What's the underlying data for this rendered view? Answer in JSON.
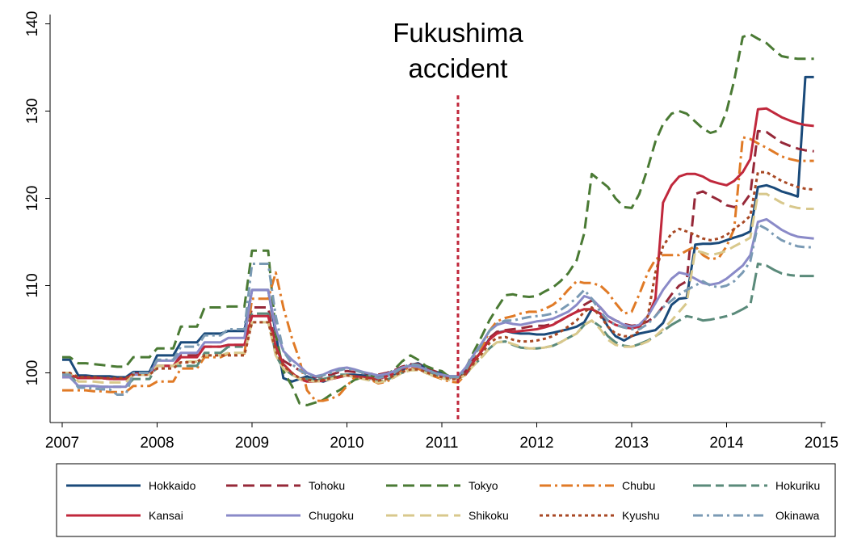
{
  "chart_data": {
    "type": "line",
    "title": "",
    "xlabel": "",
    "ylabel": "",
    "xlim": [
      2007,
      2015
    ],
    "ylim": [
      95,
      140
    ],
    "x_ticks": [
      2007,
      2008,
      2009,
      2010,
      2011,
      2012,
      2013,
      2014,
      2015
    ],
    "y_ticks": [
      100,
      110,
      120,
      130,
      140
    ],
    "x_tick_labels": [
      "2007",
      "2008",
      "2009",
      "2010",
      "2011",
      "2012",
      "2013",
      "2014",
      "2015"
    ],
    "y_tick_labels": [
      "100",
      "110",
      "120",
      "130",
      "140"
    ],
    "grid": false,
    "legend_position": "bottom",
    "annotation": {
      "line1": "Fukushima",
      "line2": "accident",
      "x": 2011.17,
      "color": "#c0283c"
    },
    "x": [
      2007.0,
      2007.08,
      2007.17,
      2007.25,
      2007.33,
      2007.42,
      2007.5,
      2007.58,
      2007.67,
      2007.75,
      2007.83,
      2007.92,
      2008.0,
      2008.08,
      2008.17,
      2008.25,
      2008.33,
      2008.42,
      2008.5,
      2008.58,
      2008.67,
      2008.75,
      2008.83,
      2008.92,
      2009.0,
      2009.08,
      2009.17,
      2009.25,
      2009.33,
      2009.42,
      2009.5,
      2009.58,
      2009.67,
      2009.75,
      2009.83,
      2009.92,
      2010.0,
      2010.08,
      2010.17,
      2010.25,
      2010.33,
      2010.42,
      2010.5,
      2010.58,
      2010.67,
      2010.75,
      2010.83,
      2010.92,
      2011.0,
      2011.08,
      2011.17,
      2011.25,
      2011.33,
      2011.42,
      2011.5,
      2011.58,
      2011.67,
      2011.75,
      2011.83,
      2011.92,
      2012.0,
      2012.08,
      2012.17,
      2012.25,
      2012.33,
      2012.42,
      2012.5,
      2012.58,
      2012.67,
      2012.75,
      2012.83,
      2012.92,
      2013.0,
      2013.08,
      2013.17,
      2013.25,
      2013.33,
      2013.42,
      2013.5,
      2013.58,
      2013.67,
      2013.75,
      2013.83,
      2013.92,
      2014.0,
      2014.08,
      2014.17,
      2014.25,
      2014.33,
      2014.42,
      2014.5,
      2014.58,
      2014.67,
      2014.75,
      2014.83,
      2014.92
    ],
    "series": [
      {
        "name": "Hokkaido",
        "color": "#1a4a7a",
        "dash": "",
        "values": [
          101.5,
          101.5,
          99.7,
          99.7,
          99.6,
          99.6,
          99.6,
          99.5,
          99.5,
          100.1,
          100.1,
          100.1,
          102.0,
          102.0,
          102.0,
          103.5,
          103.5,
          103.5,
          104.5,
          104.5,
          104.5,
          104.8,
          104.8,
          104.8,
          109.5,
          109.5,
          109.5,
          104.5,
          99.4,
          99.0,
          99.3,
          99.6,
          99.2,
          99.0,
          99.3,
          99.6,
          99.8,
          99.8,
          99.7,
          99.7,
          99.6,
          99.7,
          99.9,
          100.3,
          100.9,
          101.1,
          100.6,
          100.1,
          100.0,
          99.6,
          99.6,
          100.0,
          101.3,
          102.5,
          103.9,
          104.6,
          104.8,
          104.6,
          104.5,
          104.5,
          104.4,
          104.4,
          104.6,
          104.8,
          105.0,
          105.3,
          105.8,
          107.3,
          106.8,
          105.3,
          104.2,
          103.7,
          104.2,
          104.5,
          104.7,
          104.9,
          105.7,
          107.8,
          108.5,
          108.6,
          114.7,
          114.8,
          114.8,
          114.9,
          115.2,
          115.5,
          115.8,
          116.2,
          121.3,
          121.5,
          121.2,
          120.8,
          120.5,
          120.2,
          133.9,
          133.9
        ]
      },
      {
        "name": "Tohoku",
        "color": "#962838",
        "dash": "14 7",
        "values": [
          99.5,
          99.5,
          99.5,
          99.5,
          99.5,
          99.4,
          99.3,
          99.3,
          99.3,
          99.9,
          99.9,
          99.9,
          100.8,
          100.8,
          100.8,
          102.0,
          102.0,
          102.0,
          103.0,
          103.0,
          103.0,
          103.2,
          103.2,
          103.2,
          107.5,
          107.5,
          107.5,
          103.0,
          101.4,
          100.8,
          100.3,
          99.8,
          99.5,
          99.6,
          99.8,
          100.1,
          100.2,
          100.1,
          100.0,
          99.9,
          99.8,
          100.0,
          100.3,
          100.7,
          101.0,
          101.0,
          100.6,
          100.2,
          99.9,
          99.6,
          99.4,
          100.3,
          101.5,
          102.7,
          104.0,
          104.7,
          104.9,
          105.0,
          105.1,
          105.3,
          105.4,
          105.4,
          105.6,
          106.0,
          106.5,
          107.0,
          107.8,
          108.3,
          107.5,
          106.5,
          106.0,
          105.6,
          105.4,
          105.5,
          105.9,
          106.5,
          107.6,
          109.0,
          110.0,
          110.5,
          120.5,
          120.8,
          120.3,
          119.8,
          119.2,
          119.0,
          119.3,
          120.5,
          127.7,
          127.6,
          127.0,
          126.4,
          126.0,
          125.7,
          125.5,
          125.4
        ]
      },
      {
        "name": "Tokyo",
        "color": "#4a7a34",
        "dash": "14 7",
        "values": [
          101.8,
          101.8,
          101.1,
          101.1,
          101.0,
          100.9,
          100.8,
          100.7,
          100.7,
          101.8,
          101.8,
          101.8,
          102.8,
          102.8,
          102.8,
          105.3,
          105.3,
          105.3,
          107.5,
          107.5,
          107.5,
          107.6,
          107.6,
          107.6,
          114.0,
          114.0,
          114.0,
          104.5,
          100.2,
          98.5,
          96.5,
          96.3,
          96.6,
          96.9,
          97.5,
          98.0,
          98.6,
          99.2,
          99.5,
          99.7,
          99.4,
          99.8,
          100.4,
          101.3,
          102.0,
          101.5,
          100.8,
          100.4,
          100.2,
          99.5,
          99.3,
          100.5,
          102.3,
          104.2,
          106.0,
          107.4,
          108.9,
          109.0,
          108.8,
          108.7,
          108.8,
          109.3,
          109.8,
          110.5,
          111.4,
          112.9,
          116.0,
          122.8,
          122.0,
          121.3,
          120.0,
          119.0,
          118.9,
          120.5,
          123.5,
          126.5,
          128.5,
          129.7,
          130.0,
          129.7,
          128.8,
          128.0,
          127.5,
          127.8,
          130.0,
          133.5,
          138.5,
          138.8,
          138.3,
          137.8,
          137.0,
          136.3,
          136.1,
          136.0,
          136.0,
          136.0
        ]
      },
      {
        "name": "Chubu",
        "color": "#e07a26",
        "dash": "14 5 3 5",
        "values": [
          98.0,
          98.0,
          98.0,
          98.0,
          97.9,
          97.9,
          97.8,
          97.8,
          97.8,
          98.5,
          98.5,
          98.5,
          99.0,
          99.0,
          99.0,
          100.5,
          100.5,
          100.5,
          101.8,
          101.8,
          101.8,
          102.2,
          102.2,
          102.2,
          108.5,
          108.5,
          108.5,
          111.5,
          107.5,
          104.0,
          101.5,
          98.0,
          96.8,
          96.8,
          97.0,
          97.5,
          98.5,
          99.5,
          99.5,
          99.2,
          98.8,
          99.0,
          99.5,
          100.2,
          100.7,
          100.5,
          100.0,
          99.6,
          99.3,
          99.0,
          98.9,
          99.8,
          101.2,
          102.8,
          104.8,
          105.9,
          106.3,
          106.5,
          106.8,
          107.0,
          107.0,
          107.3,
          107.8,
          108.5,
          109.5,
          110.5,
          110.3,
          110.3,
          110.0,
          109.2,
          108.0,
          106.8,
          107.0,
          109.0,
          111.5,
          113.0,
          113.5,
          113.5,
          113.5,
          114.0,
          114.5,
          113.5,
          113.0,
          113.2,
          114.5,
          116.5,
          127.0,
          126.8,
          126.3,
          125.8,
          125.3,
          124.8,
          124.5,
          124.3,
          124.3,
          124.3
        ]
      },
      {
        "name": "Hokuriku",
        "color": "#5a8a7a",
        "dash": "22 6 10 6",
        "values": [
          100.0,
          100.0,
          98.5,
          98.5,
          98.5,
          98.4,
          98.4,
          98.4,
          98.4,
          99.3,
          99.3,
          99.3,
          100.8,
          100.8,
          100.8,
          100.8,
          100.8,
          100.8,
          102.3,
          102.3,
          102.3,
          103.0,
          103.0,
          103.0,
          106.8,
          106.8,
          106.8,
          102.0,
          100.5,
          99.8,
          99.4,
          99.3,
          99.2,
          99.3,
          99.5,
          99.8,
          99.8,
          99.6,
          99.4,
          99.2,
          99.0,
          99.2,
          99.6,
          100.0,
          100.3,
          100.4,
          100.2,
          99.8,
          99.6,
          99.4,
          99.3,
          99.8,
          100.8,
          101.8,
          102.8,
          103.5,
          103.6,
          103.2,
          102.9,
          102.8,
          102.8,
          102.9,
          103.1,
          103.5,
          104.0,
          104.5,
          105.5,
          106.0,
          105.3,
          104.2,
          103.5,
          103.1,
          103.0,
          103.3,
          103.7,
          104.2,
          104.8,
          105.5,
          106.0,
          106.5,
          106.3,
          106.0,
          106.1,
          106.3,
          106.5,
          106.8,
          107.3,
          107.8,
          112.5,
          112.3,
          111.8,
          111.4,
          111.2,
          111.1,
          111.1,
          111.1
        ]
      },
      {
        "name": "Kansai",
        "color": "#c0283c",
        "dash": "",
        "values": [
          99.8,
          99.8,
          99.4,
          99.4,
          99.4,
          99.4,
          99.3,
          99.3,
          99.3,
          99.9,
          99.9,
          99.9,
          100.8,
          100.8,
          100.8,
          101.8,
          101.8,
          101.8,
          103.0,
          103.0,
          103.0,
          103.2,
          103.2,
          103.2,
          106.5,
          106.5,
          106.5,
          103.0,
          101.0,
          100.0,
          99.3,
          99.0,
          99.0,
          99.1,
          99.3,
          99.5,
          99.7,
          99.6,
          99.5,
          99.4,
          99.3,
          99.6,
          100.0,
          100.5,
          100.8,
          100.7,
          100.4,
          100.0,
          99.7,
          99.5,
          99.4,
          99.8,
          101.2,
          102.5,
          103.8,
          104.5,
          104.8,
          104.7,
          104.8,
          104.9,
          105.0,
          105.2,
          105.5,
          106.0,
          106.5,
          107.0,
          107.3,
          107.3,
          106.8,
          106.0,
          105.5,
          105.2,
          105.1,
          105.3,
          106.5,
          108.5,
          119.5,
          121.5,
          122.5,
          122.8,
          122.8,
          122.5,
          122.0,
          121.7,
          121.5,
          122.0,
          123.0,
          124.5,
          130.2,
          130.3,
          129.8,
          129.3,
          128.9,
          128.6,
          128.4,
          128.3
        ]
      },
      {
        "name": "Chugoku",
        "color": "#8a8ac8",
        "dash": "",
        "values": [
          99.5,
          99.5,
          98.5,
          98.5,
          98.5,
          98.4,
          98.4,
          98.4,
          98.4,
          99.8,
          99.8,
          99.8,
          101.4,
          101.4,
          101.4,
          102.3,
          102.3,
          102.3,
          103.5,
          103.5,
          103.5,
          104.0,
          104.0,
          104.0,
          109.5,
          109.5,
          109.5,
          105.0,
          102.5,
          101.5,
          100.8,
          100.0,
          99.6,
          99.8,
          100.2,
          100.5,
          100.6,
          100.4,
          100.1,
          99.9,
          99.7,
          99.9,
          100.2,
          100.6,
          100.8,
          100.7,
          100.4,
          100.0,
          99.8,
          99.6,
          99.6,
          100.6,
          102.0,
          103.4,
          104.8,
          105.5,
          105.8,
          105.6,
          105.5,
          105.7,
          105.9,
          106.0,
          106.2,
          106.6,
          107.0,
          107.8,
          108.8,
          108.5,
          107.5,
          106.5,
          106.0,
          105.5,
          105.3,
          105.5,
          106.5,
          108.0,
          109.5,
          110.8,
          111.5,
          111.3,
          110.8,
          110.3,
          110.1,
          110.3,
          110.8,
          111.5,
          112.3,
          113.5,
          117.3,
          117.6,
          117.0,
          116.4,
          115.9,
          115.6,
          115.5,
          115.4
        ]
      },
      {
        "name": "Shikoku",
        "color": "#d8c88c",
        "dash": "14 7",
        "values": [
          100.0,
          100.0,
          99.0,
          99.0,
          99.0,
          98.9,
          98.9,
          98.9,
          98.9,
          99.8,
          99.8,
          99.8,
          100.8,
          100.8,
          100.8,
          101.3,
          101.3,
          101.3,
          102.0,
          102.0,
          102.0,
          102.3,
          102.3,
          102.3,
          105.8,
          105.8,
          105.8,
          102.0,
          100.5,
          99.8,
          99.3,
          99.1,
          99.0,
          99.1,
          99.3,
          99.6,
          99.7,
          99.5,
          99.3,
          99.1,
          98.9,
          99.1,
          99.5,
          100.0,
          100.3,
          100.3,
          100.0,
          99.6,
          99.4,
          99.2,
          99.2,
          99.8,
          100.8,
          101.8,
          102.8,
          103.5,
          103.6,
          103.3,
          103.0,
          102.8,
          102.8,
          102.9,
          103.1,
          103.5,
          104.0,
          104.5,
          105.5,
          106.0,
          105.0,
          103.8,
          103.2,
          103.0,
          103.0,
          103.2,
          103.6,
          104.2,
          105.0,
          106.0,
          107.0,
          108.0,
          114.0,
          113.8,
          113.5,
          113.7,
          114.0,
          114.5,
          115.0,
          115.5,
          120.5,
          120.5,
          120.0,
          119.5,
          119.1,
          118.9,
          118.8,
          118.8
        ]
      },
      {
        "name": "Kyushu",
        "color": "#a84824",
        "dash": "4 4",
        "values": [
          100.0,
          100.0,
          99.5,
          99.5,
          99.5,
          99.4,
          99.4,
          99.4,
          99.4,
          99.8,
          99.8,
          99.8,
          100.5,
          100.5,
          100.5,
          101.2,
          101.2,
          101.2,
          102.0,
          102.0,
          102.0,
          102.0,
          102.0,
          102.0,
          105.8,
          105.8,
          105.8,
          102.5,
          100.8,
          100.0,
          99.4,
          99.2,
          99.1,
          99.2,
          99.4,
          99.6,
          99.7,
          99.6,
          99.4,
          99.3,
          99.1,
          99.3,
          99.7,
          100.1,
          100.4,
          100.4,
          100.1,
          99.7,
          99.5,
          99.3,
          99.3,
          99.9,
          101.0,
          102.2,
          103.4,
          104.0,
          104.1,
          103.8,
          103.6,
          103.6,
          103.7,
          103.9,
          104.2,
          104.7,
          105.3,
          106.0,
          107.0,
          107.5,
          106.5,
          105.3,
          104.5,
          104.2,
          104.2,
          104.8,
          106.5,
          111.5,
          114.5,
          116.0,
          116.5,
          116.2,
          115.8,
          115.4,
          115.2,
          115.4,
          115.8,
          116.5,
          117.2,
          118.0,
          123.0,
          123.0,
          122.5,
          122.0,
          121.6,
          121.3,
          121.1,
          121.0
        ]
      },
      {
        "name": "Okinawa",
        "color": "#7a9ab4",
        "dash": "12 5 3 5",
        "values": [
          99.8,
          99.8,
          98.3,
          98.3,
          98.2,
          98.1,
          98.1,
          97.5,
          97.5,
          100.0,
          100.0,
          100.0,
          101.5,
          101.5,
          101.5,
          103.0,
          103.0,
          103.0,
          104.3,
          104.3,
          104.3,
          105.0,
          105.0,
          105.0,
          112.5,
          112.5,
          112.5,
          106.5,
          102.5,
          101.0,
          100.3,
          99.8,
          99.5,
          99.7,
          100.0,
          100.3,
          100.5,
          100.3,
          100.0,
          99.7,
          99.4,
          99.6,
          100.0,
          100.6,
          101.0,
          100.9,
          100.5,
          100.0,
          99.7,
          99.5,
          99.5,
          100.3,
          101.8,
          103.3,
          104.8,
          105.6,
          106.0,
          106.0,
          106.2,
          106.4,
          106.5,
          106.6,
          106.8,
          107.2,
          107.8,
          108.6,
          109.5,
          108.5,
          107.0,
          106.0,
          105.5,
          105.2,
          105.0,
          105.0,
          105.6,
          106.5,
          107.5,
          108.3,
          109.0,
          109.5,
          110.0,
          110.5,
          110.0,
          109.8,
          110.0,
          110.5,
          111.5,
          112.8,
          117.0,
          116.5,
          115.8,
          115.2,
          114.8,
          114.5,
          114.4,
          114.4
        ]
      }
    ]
  }
}
